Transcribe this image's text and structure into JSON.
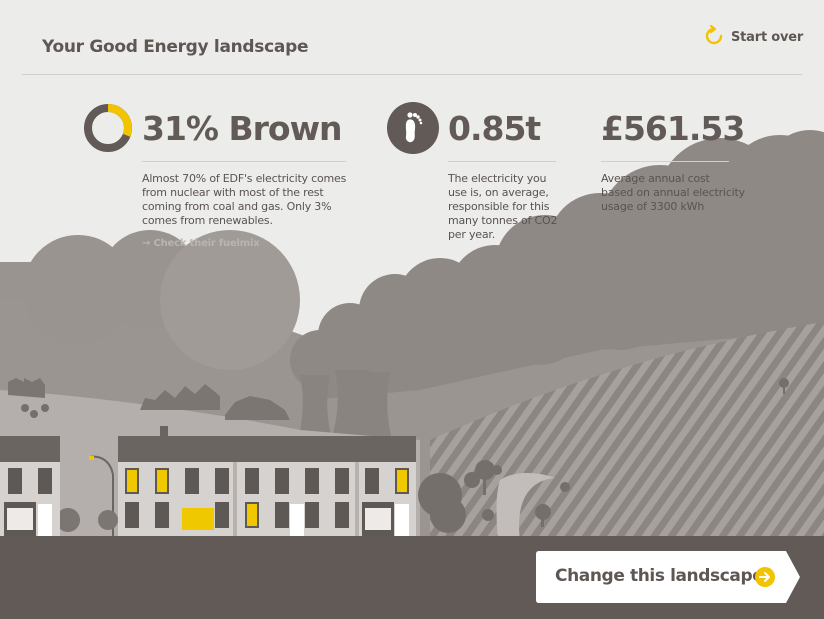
{
  "header": {
    "title": "Your Good Energy landscape",
    "start_over_label": "Start over"
  },
  "stats": {
    "fuel": {
      "value": "31% Brown",
      "brown_fraction": 0.31,
      "description": [
        "Almost 70% of EDF's electricity comes",
        "from nuclear with most of the rest",
        "coming from coal and gas. Only 3%",
        "comes from renewables."
      ],
      "link_label": "Check their fuelmix"
    },
    "carbon": {
      "value": "0.85t",
      "description": [
        "The electricity you",
        "use is, on average,",
        "responsible for this",
        "many tonnes of CO2",
        "per year."
      ]
    },
    "cost": {
      "value": "£561.53",
      "description": [
        "Average annual cost",
        "based on annual electricity",
        "usage of 3300 kWh"
      ]
    }
  },
  "footer": {
    "change_label": "Change this landscape"
  },
  "colors": {
    "accent": "#f2c300",
    "dark": "#625a56",
    "text": "#5f5754",
    "smoke": "#8f8986",
    "window_lit": "#f0c800"
  },
  "icons": {
    "start_over": "refresh-icon",
    "carbon": "footprint-icon",
    "fuel": "donut-chart-icon",
    "change": "arrow-right-circle-icon",
    "link": "arrow-right-icon"
  }
}
